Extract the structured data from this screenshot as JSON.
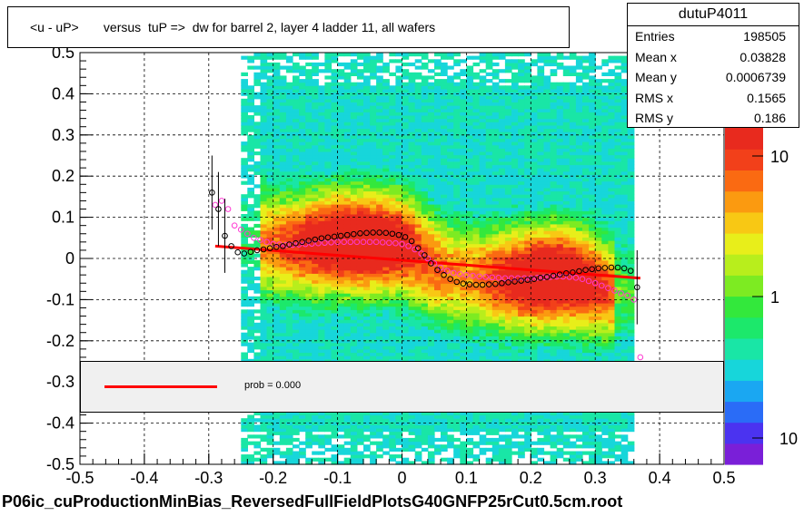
{
  "title": "<u - uP>       versus  tuP =>  dw for barrel 2, layer 4 ladder 11, all wafers",
  "footer": "P06ic_cuProductionMinBias_ReversedFullFieldPlotsG40GNFP25rCut0.5cm.root",
  "stats": {
    "name": "dutuP4011",
    "rows": [
      {
        "label": "Entries",
        "value": "198505"
      },
      {
        "label": "Mean x",
        "value": "0.03828"
      },
      {
        "label": "Mean y",
        "value": "0.0006739"
      },
      {
        "label": "RMS x",
        "value": "0.1565"
      },
      {
        "label": "RMS y",
        "value": "0.186"
      }
    ]
  },
  "legend": {
    "text": "prob = 0.000",
    "line_color": "#ff0000"
  },
  "colorbar": {
    "tick_labels": [
      "10",
      "1",
      "10"
    ],
    "scale": "log"
  },
  "chart_data": {
    "type": "heatmap",
    "title": "<u - uP>       versus  tuP =>  dw for barrel 2, layer 4 ladder 11, all wafers",
    "xlabel": "",
    "ylabel": "",
    "xlim": [
      -0.5,
      0.5
    ],
    "ylim": [
      -0.5,
      0.5
    ],
    "x_ticks": [
      "-0.5",
      "-0.4",
      "-0.3",
      "-0.2",
      "-0.1",
      "0",
      "0.1",
      "0.2",
      "0.3",
      "0.4",
      "0.5"
    ],
    "y_ticks": [
      "-0.5",
      "-0.4",
      "-0.3",
      "-0.2",
      "-0.1",
      "0",
      "0.1",
      "0.2",
      "0.3",
      "0.4",
      "0.5"
    ],
    "grid": true,
    "heatmap_x_range": [
      -0.29,
      0.37
    ],
    "fit_line": {
      "x": [
        -0.29,
        0.37
      ],
      "y": [
        0.03,
        -0.048
      ],
      "color": "#ff0000"
    },
    "profile_black": {
      "x": [
        -0.295,
        -0.285,
        -0.275,
        -0.265,
        -0.255,
        -0.245,
        -0.235,
        -0.225,
        -0.215,
        -0.205,
        -0.195,
        -0.185,
        -0.175,
        -0.165,
        -0.155,
        -0.145,
        -0.135,
        -0.125,
        -0.115,
        -0.105,
        -0.095,
        -0.085,
        -0.075,
        -0.065,
        -0.055,
        -0.045,
        -0.035,
        -0.025,
        -0.015,
        -0.005,
        0.005,
        0.015,
        0.025,
        0.035,
        0.045,
        0.055,
        0.065,
        0.075,
        0.085,
        0.095,
        0.105,
        0.115,
        0.125,
        0.135,
        0.145,
        0.155,
        0.165,
        0.175,
        0.185,
        0.195,
        0.205,
        0.215,
        0.225,
        0.235,
        0.245,
        0.255,
        0.265,
        0.275,
        0.285,
        0.295,
        0.305,
        0.315,
        0.325,
        0.335,
        0.345,
        0.355,
        0.365
      ],
      "y": [
        0.16,
        0.12,
        0.055,
        0.03,
        0.015,
        0.012,
        0.016,
        0.02,
        0.022,
        0.025,
        0.028,
        0.03,
        0.034,
        0.037,
        0.04,
        0.043,
        0.046,
        0.049,
        0.051,
        0.053,
        0.055,
        0.057,
        0.059,
        0.061,
        0.062,
        0.063,
        0.063,
        0.062,
        0.06,
        0.057,
        0.052,
        0.042,
        0.025,
        0.008,
        -0.012,
        -0.028,
        -0.04,
        -0.05,
        -0.057,
        -0.061,
        -0.063,
        -0.064,
        -0.064,
        -0.063,
        -0.062,
        -0.06,
        -0.058,
        -0.056,
        -0.054,
        -0.052,
        -0.05,
        -0.047,
        -0.045,
        -0.042,
        -0.039,
        -0.036,
        -0.034,
        -0.031,
        -0.028,
        -0.026,
        -0.024,
        -0.023,
        -0.022,
        -0.022,
        -0.024,
        -0.03,
        -0.07
      ]
    },
    "profile_magenta": {
      "x": [
        -0.29,
        -0.28,
        -0.27,
        -0.26,
        -0.25,
        -0.24,
        -0.23,
        -0.22,
        -0.21,
        -0.2,
        -0.19,
        -0.18,
        -0.17,
        -0.16,
        -0.15,
        -0.14,
        -0.13,
        -0.12,
        -0.11,
        -0.1,
        -0.09,
        -0.08,
        -0.07,
        -0.06,
        -0.05,
        -0.04,
        -0.03,
        -0.02,
        -0.01,
        0.0,
        0.01,
        0.02,
        0.03,
        0.04,
        0.05,
        0.06,
        0.07,
        0.08,
        0.09,
        0.1,
        0.11,
        0.12,
        0.13,
        0.14,
        0.15,
        0.16,
        0.17,
        0.18,
        0.19,
        0.2,
        0.21,
        0.22,
        0.23,
        0.24,
        0.25,
        0.26,
        0.27,
        0.28,
        0.29,
        0.3,
        0.31,
        0.32,
        0.33,
        0.34,
        0.35,
        0.36,
        0.37
      ],
      "y": [
        0.13,
        0.14,
        0.12,
        0.08,
        0.07,
        0.06,
        0.05,
        0.045,
        0.04,
        0.035,
        0.034,
        0.033,
        0.033,
        0.034,
        0.035,
        0.036,
        0.037,
        0.038,
        0.039,
        0.04,
        0.04,
        0.04,
        0.04,
        0.04,
        0.04,
        0.04,
        0.039,
        0.038,
        0.037,
        0.035,
        0.03,
        0.022,
        0.012,
        0.0,
        -0.012,
        -0.022,
        -0.03,
        -0.035,
        -0.038,
        -0.04,
        -0.042,
        -0.044,
        -0.045,
        -0.046,
        -0.047,
        -0.048,
        -0.048,
        -0.048,
        -0.048,
        -0.048,
        -0.047,
        -0.046,
        -0.045,
        -0.044,
        -0.044,
        -0.045,
        -0.047,
        -0.05,
        -0.055,
        -0.06,
        -0.066,
        -0.072,
        -0.078,
        -0.085,
        -0.09,
        -0.1,
        -0.24
      ]
    }
  }
}
